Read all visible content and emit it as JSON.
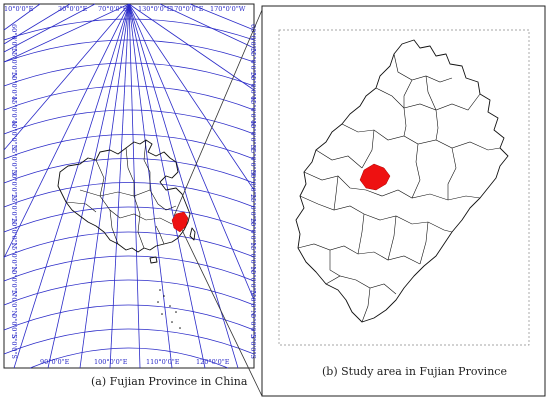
{
  "panel_a": {
    "caption": "(a) Fujian Province in China",
    "top_labels": [
      "10°0'0\"E",
      "30°0'0\"E",
      "70°0'0\"E",
      "130°0'0\"E",
      "170°0'0\"E",
      "170°0'0\"W"
    ],
    "bottom_labels": [
      "90°0'0\"E",
      "100°0'0\"E",
      "110°0'0\"E",
      "120°0'0\"E"
    ],
    "left_labels": [
      "60°0'0\"N",
      "55°0'0\"N",
      "50°0'0\"N",
      "45°0'0\"N",
      "40°0'0\"N",
      "35°0'0\"N",
      "30°0'0\"N",
      "25°0'0\"N",
      "20°0'0\"N",
      "15°0'0\"N",
      "10°0'0\"N",
      "5°0'0\"N",
      "0°0'0\"S",
      "5°0'0\"S"
    ],
    "right_labels": [
      "60°0'0\"N",
      "55°0'0\"N",
      "50°0'0\"N",
      "45°0'0\"N",
      "40°0'0\"N",
      "35°0'0\"N",
      "30°0'0\"N",
      "25°0'0\"N",
      "20°0'0\"N",
      "15°0'0\"N",
      "10°0'0\"N",
      "5°0'0\"N",
      "0°0'0\"S",
      "5°0'0\"S"
    ]
  },
  "panel_b": {
    "caption": "(b) Study area in Fujian Province"
  },
  "colors": {
    "graticule": "#2b2bc8",
    "highlight": "#ee1111",
    "outline": "#111111"
  }
}
